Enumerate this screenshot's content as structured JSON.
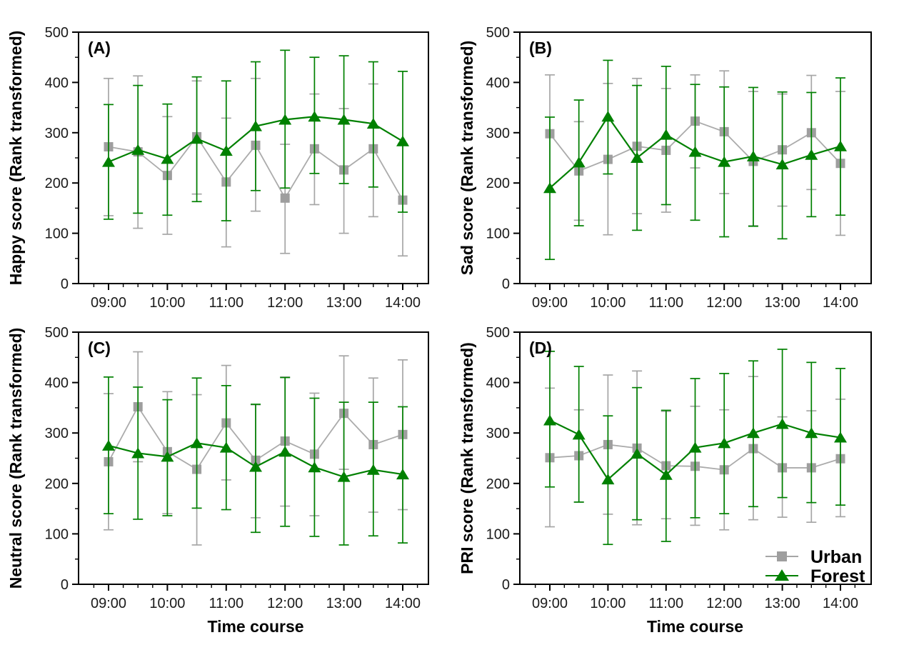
{
  "figure": {
    "background": "#ffffff",
    "axis_color": "#000000",
    "text_color": "#1a1a1a",
    "x_axis_title": "Time course",
    "y_axis": {
      "min": 0,
      "max": 500,
      "major_ticks": [
        0,
        100,
        200,
        300,
        400,
        500
      ],
      "minor_step": 50
    },
    "x_categories": [
      "09:00",
      "09:30",
      "10:00",
      "10:30",
      "11:00",
      "11:30",
      "12:00",
      "12:30",
      "13:00",
      "13:30",
      "14:00"
    ],
    "x_major_labels": [
      "09:00",
      "10:00",
      "11:00",
      "12:00",
      "13:00",
      "14:00"
    ],
    "legend": {
      "location": "inside panel D, bottom-right",
      "items": [
        {
          "label": "Urban",
          "series": "Urban"
        },
        {
          "label": "Forest",
          "series": "Forest"
        }
      ]
    },
    "series_styles": {
      "Urban": {
        "color": "#ababab",
        "marker_color": "#9e9e9e",
        "marker": "square"
      },
      "Forest": {
        "color": "#008000",
        "marker_color": "#008000",
        "marker": "triangle"
      }
    }
  },
  "chart_data": [
    {
      "panel": "A",
      "type": "line",
      "title_label": "(A)",
      "ylabel": "Happy score (Rank transformed)",
      "xlabel": "",
      "ylim": [
        0,
        500
      ],
      "x": [
        "09:00",
        "09:30",
        "10:00",
        "10:30",
        "11:00",
        "11:30",
        "12:00",
        "12:30",
        "13:00",
        "13:30",
        "14:00"
      ],
      "series": [
        {
          "name": "Urban",
          "values": [
            272,
            262,
            215,
            292,
            202,
            275,
            170,
            268,
            226,
            268,
            166
          ],
          "err_lo": [
            135,
            110,
            98,
            178,
            73,
            144,
            60,
            157,
            100,
            133,
            55
          ],
          "err_hi": [
            408,
            413,
            332,
            403,
            329,
            408,
            277,
            377,
            348,
            397,
            278
          ]
        },
        {
          "name": "Forest",
          "values": [
            242,
            266,
            248,
            288,
            264,
            313,
            326,
            332,
            326,
            318,
            283
          ],
          "err_lo": [
            128,
            140,
            136,
            163,
            125,
            185,
            190,
            219,
            199,
            192,
            142
          ],
          "err_hi": [
            356,
            394,
            357,
            411,
            403,
            441,
            464,
            450,
            453,
            441,
            422
          ]
        }
      ]
    },
    {
      "panel": "B",
      "type": "line",
      "title_label": "(B)",
      "ylabel": "Sad score (Rank transformed)",
      "xlabel": "",
      "ylim": [
        0,
        500
      ],
      "x": [
        "09:00",
        "09:30",
        "10:00",
        "10:30",
        "11:00",
        "11:30",
        "12:00",
        "12:30",
        "13:00",
        "13:30",
        "14:00"
      ],
      "series": [
        {
          "name": "Urban",
          "values": [
            298,
            224,
            247,
            273,
            265,
            323,
            302,
            243,
            266,
            300,
            239
          ],
          "err_lo": [
            182,
            126,
            97,
            139,
            142,
            230,
            179,
            115,
            154,
            187,
            96
          ],
          "err_hi": [
            415,
            322,
            398,
            408,
            388,
            415,
            423,
            382,
            377,
            414,
            382
          ]
        },
        {
          "name": "Forest",
          "values": [
            190,
            241,
            332,
            250,
            296,
            262,
            242,
            253,
            237,
            256,
            273
          ],
          "err_lo": [
            48,
            115,
            218,
            106,
            157,
            126,
            93,
            114,
            89,
            133,
            136
          ],
          "err_hi": [
            331,
            365,
            444,
            394,
            432,
            396,
            391,
            390,
            381,
            380,
            409
          ]
        }
      ]
    },
    {
      "panel": "C",
      "type": "line",
      "title_label": "(C)",
      "ylabel": "Neutral score (Rank transformed)",
      "xlabel": "Time course",
      "ylim": [
        0,
        500
      ],
      "x": [
        "09:00",
        "09:30",
        "10:00",
        "10:30",
        "11:00",
        "11:30",
        "12:00",
        "12:30",
        "13:00",
        "13:30",
        "14:00"
      ],
      "series": [
        {
          "name": "Urban",
          "values": [
            243,
            352,
            263,
            228,
            320,
            246,
            284,
            258,
            339,
            277,
            297
          ],
          "err_lo": [
            108,
            243,
            140,
            78,
            207,
            132,
            155,
            136,
            228,
            143,
            148
          ],
          "err_hi": [
            378,
            461,
            382,
            376,
            434,
            356,
            411,
            379,
            453,
            409,
            445
          ]
        },
        {
          "name": "Forest",
          "values": [
            275,
            260,
            253,
            280,
            271,
            233,
            263,
            232,
            213,
            227,
            218
          ],
          "err_lo": [
            140,
            129,
            136,
            151,
            148,
            103,
            115,
            95,
            78,
            96,
            82
          ],
          "err_hi": [
            411,
            391,
            366,
            409,
            394,
            357,
            410,
            369,
            361,
            361,
            352
          ]
        }
      ]
    },
    {
      "panel": "D",
      "type": "line",
      "title_label": "(D)",
      "ylabel": "PRI score (Rank transformed)",
      "xlabel": "Time course",
      "ylim": [
        0,
        500
      ],
      "has_legend": true,
      "x": [
        "09:00",
        "09:30",
        "10:00",
        "10:30",
        "11:00",
        "11:30",
        "12:00",
        "12:30",
        "13:00",
        "13:30",
        "14:00"
      ],
      "series": [
        {
          "name": "Urban",
          "values": [
            251,
            255,
            277,
            270,
            235,
            234,
            227,
            269,
            231,
            231,
            249
          ],
          "err_lo": [
            114,
            163,
            139,
            118,
            130,
            117,
            108,
            128,
            133,
            123,
            134
          ],
          "err_hi": [
            389,
            346,
            415,
            423,
            343,
            353,
            346,
            412,
            332,
            344,
            367
          ]
        },
        {
          "name": "Forest",
          "values": [
            325,
            297,
            208,
            259,
            217,
            271,
            280,
            300,
            318,
            300,
            291
          ],
          "err_lo": [
            193,
            163,
            79,
            128,
            85,
            132,
            140,
            154,
            172,
            162,
            157
          ],
          "err_hi": [
            462,
            432,
            334,
            390,
            345,
            408,
            418,
            443,
            466,
            440,
            428
          ]
        }
      ]
    }
  ]
}
